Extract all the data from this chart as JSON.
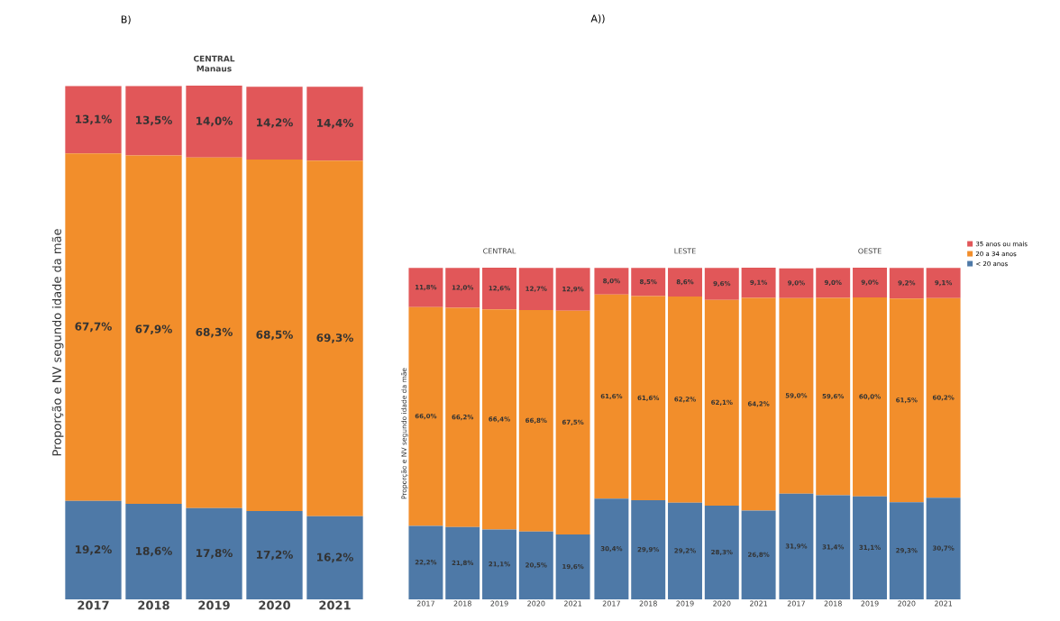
{
  "chart_data": [
    {
      "type": "bar",
      "title": "CENTRAL",
      "subtitle": "Manaus",
      "ylabel": "Proporção e NV segundo idade da mãe",
      "categories": [
        "2017",
        "2018",
        "2019",
        "2020",
        "2021"
      ],
      "stacked": true,
      "tick_labels": "x",
      "annotations": [
        "B)"
      ],
      "series": [
        {
          "color": "#4e79a7",
          "values": [
            19.2,
            18.6,
            17.8,
            17.2,
            16.2
          ],
          "value_labels": [
            "19,2%",
            "18,6%",
            "17,8%",
            "17,2%",
            "16,2%"
          ]
        },
        {
          "color": "#f28e2b",
          "values": [
            67.7,
            67.9,
            68.3,
            68.5,
            69.3
          ],
          "value_labels": [
            "67,7%",
            "67,9%",
            "68,3%",
            "68,5%",
            "69,3%"
          ]
        },
        {
          "color": "#e15759",
          "values": [
            13.1,
            13.5,
            14.0,
            14.2,
            14.4
          ],
          "value_labels": [
            "13,1%",
            "13,5%",
            "14,0%",
            "14,2%",
            "14,4%"
          ]
        }
      ]
    },
    {
      "type": "bar",
      "title": "CENTRAL",
      "ylabel": "Proporção e NV segundo idade da mãe",
      "categories": [
        "2017",
        "2018",
        "2019",
        "2020",
        "2021"
      ],
      "stacked": true,
      "tick_labels": "x",
      "annotations": [
        "A))"
      ],
      "series": [
        {
          "color": "#4e79a7",
          "values": [
            22.2,
            21.8,
            21.1,
            20.5,
            19.6
          ],
          "value_labels": [
            "22,2%",
            "21,8%",
            "21,1%",
            "20,5%",
            "19,6%"
          ]
        },
        {
          "color": "#f28e2b",
          "values": [
            66.0,
            66.2,
            66.4,
            66.8,
            67.5
          ],
          "value_labels": [
            "66,0%",
            "66,2%",
            "66,4%",
            "66,8%",
            "67,5%"
          ]
        },
        {
          "color": "#e15759",
          "values": [
            11.8,
            12.0,
            12.6,
            12.7,
            12.9
          ],
          "value_labels": [
            "11,8%",
            "12,0%",
            "12,6%",
            "12,7%",
            "12,9%"
          ]
        }
      ]
    },
    {
      "type": "bar",
      "title": "LESTE",
      "categories": [
        "2017",
        "2018",
        "2019",
        "2020",
        "2021"
      ],
      "stacked": true,
      "tick_labels": "x",
      "series": [
        {
          "color": "#4e79a7",
          "values": [
            30.4,
            29.9,
            29.2,
            28.3,
            26.8
          ],
          "value_labels": [
            "30,4%",
            "29,9%",
            "29,2%",
            "28,3%",
            "26,8%"
          ]
        },
        {
          "color": "#f28e2b",
          "values": [
            61.6,
            61.6,
            62.2,
            62.1,
            64.2
          ],
          "value_labels": [
            "61,6%",
            "61,6%",
            "62,2%",
            "62,1%",
            "64,2%"
          ]
        },
        {
          "color": "#e15759",
          "values": [
            8.0,
            8.5,
            8.6,
            9.6,
            9.1
          ],
          "value_labels": [
            "8,0%",
            "8,5%",
            "8,6%",
            "9,6%",
            "9,1%"
          ]
        }
      ]
    },
    {
      "type": "bar",
      "title": "OESTE",
      "categories": [
        "2017",
        "2018",
        "2019",
        "2020",
        "2021"
      ],
      "stacked": true,
      "tick_labels": "x",
      "legend": "top right",
      "series": [
        {
          "name": "< 20 anos",
          "color": "#4e79a7",
          "values": [
            31.9,
            31.4,
            31.1,
            29.3,
            30.7
          ],
          "value_labels": [
            "31,9%",
            "31,4%",
            "31,1%",
            "29,3%",
            "30,7%"
          ]
        },
        {
          "name": "20 a 34 anos",
          "color": "#f28e2b",
          "values": [
            59.0,
            59.6,
            60.0,
            61.5,
            60.2
          ],
          "value_labels": [
            "59,0%",
            "59,6%",
            "60,0%",
            "61,5%",
            "60,2%"
          ]
        },
        {
          "name": "35 anos ou mais",
          "color": "#e15759",
          "values": [
            9.0,
            9.0,
            9.0,
            9.2,
            9.1
          ],
          "value_labels": [
            "9,0%",
            "9,0%",
            "9,0%",
            "9,2%",
            "9,1%"
          ]
        }
      ]
    }
  ]
}
